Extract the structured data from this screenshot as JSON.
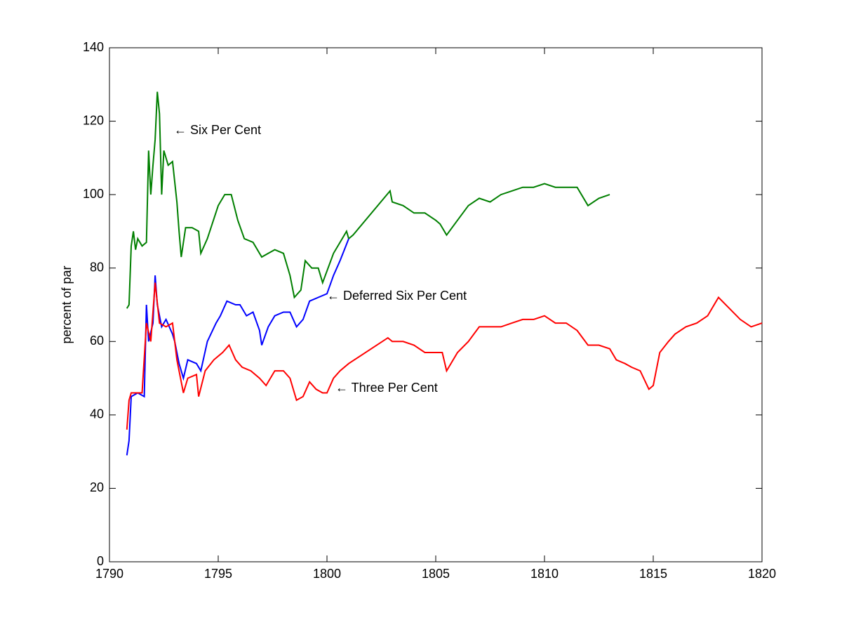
{
  "chart_data": {
    "type": "line",
    "y_label": "percent of par",
    "xlim": [
      1790,
      1820
    ],
    "ylim": [
      0,
      140
    ],
    "xticks": [
      1790,
      1795,
      1800,
      1805,
      1810,
      1815,
      1820
    ],
    "yticks": [
      0,
      20,
      40,
      60,
      80,
      100,
      120,
      140
    ],
    "annotations": [
      "← Six Per Cent",
      "← Deferred Six Per Cent",
      "← Three Per Cent"
    ],
    "series": [
      {
        "name": "Six Per Cent",
        "color": "#007f00",
        "x": [
          1790.8,
          1790.9,
          1791.0,
          1791.1,
          1791.2,
          1791.3,
          1791.5,
          1791.7,
          1791.8,
          1791.9,
          1792.0,
          1792.1,
          1792.2,
          1792.3,
          1792.4,
          1792.5,
          1792.7,
          1792.9,
          1793.1,
          1793.2,
          1793.3,
          1793.5,
          1793.8,
          1794.1,
          1794.2,
          1794.5,
          1795.0,
          1795.3,
          1795.6,
          1795.9,
          1796.2,
          1796.6,
          1797.0,
          1797.3,
          1797.6,
          1798.0,
          1798.3,
          1798.5,
          1798.8,
          1799.0,
          1799.3,
          1799.6,
          1799.8,
          1800.3,
          1800.6,
          1800.9,
          1801.0,
          1801.2,
          1802.9,
          1803.0,
          1803.5,
          1804.0,
          1804.5,
          1805.0,
          1805.2,
          1805.5,
          1806.0,
          1806.5,
          1807.0,
          1807.5,
          1808.0,
          1808.5,
          1809.0,
          1809.5,
          1810.0,
          1810.5,
          1811.0,
          1811.5,
          1812.0,
          1812.5,
          1813.0
        ],
        "values": [
          69,
          70,
          86,
          90,
          85,
          88,
          86,
          87,
          112,
          100,
          108,
          115,
          128,
          122,
          100,
          112,
          108,
          109,
          98,
          90,
          83,
          91,
          91,
          90,
          84,
          88,
          97,
          100,
          100,
          93,
          88,
          87,
          83,
          84,
          85,
          84,
          78,
          72,
          74,
          82,
          80,
          80,
          76,
          84,
          87,
          90,
          88,
          89,
          101,
          98,
          97,
          95,
          95,
          93,
          92,
          89,
          93,
          97,
          99,
          98,
          100,
          101,
          102,
          102,
          103,
          102,
          102,
          102,
          97,
          99,
          100
        ]
      },
      {
        "name": "Deferred Six Per Cent",
        "color": "#0000ff",
        "x": [
          1790.8,
          1790.9,
          1791.0,
          1791.3,
          1791.6,
          1791.7,
          1791.8,
          1792.0,
          1792.1,
          1792.2,
          1792.4,
          1792.6,
          1792.9,
          1793.0,
          1793.2,
          1793.4,
          1793.6,
          1794.0,
          1794.2,
          1794.5,
          1794.9,
          1795.1,
          1795.4,
          1795.8,
          1796.0,
          1796.3,
          1796.6,
          1796.9,
          1797.0,
          1797.3,
          1797.6,
          1798.0,
          1798.3,
          1798.6,
          1798.9,
          1799.2,
          1799.6,
          1800.0,
          1800.3,
          1800.6,
          1800.8,
          1801.0
        ],
        "values": [
          29,
          33,
          45,
          46,
          45,
          70,
          60,
          65,
          78,
          70,
          64,
          66,
          62,
          60,
          54,
          50,
          55,
          54,
          52,
          60,
          65,
          67,
          71,
          70,
          70,
          67,
          68,
          63,
          59,
          64,
          67,
          68,
          68,
          64,
          66,
          71,
          72,
          73,
          78,
          82,
          85,
          88
        ]
      },
      {
        "name": "Three Per Cent",
        "color": "#ff0000",
        "x": [
          1790.8,
          1790.9,
          1791.0,
          1791.5,
          1791.7,
          1791.9,
          1792.1,
          1792.3,
          1792.6,
          1792.9,
          1793.1,
          1793.4,
          1793.6,
          1794.0,
          1794.1,
          1794.4,
          1794.8,
          1795.2,
          1795.5,
          1795.8,
          1796.1,
          1796.5,
          1796.9,
          1797.2,
          1797.6,
          1798.0,
          1798.3,
          1798.6,
          1798.9,
          1799.2,
          1799.5,
          1799.8,
          1800.0,
          1800.3,
          1800.6,
          1801.0,
          1802.8,
          1803.0,
          1803.5,
          1804.0,
          1804.5,
          1805.0,
          1805.3,
          1805.5,
          1806.0,
          1806.5,
          1807.0,
          1807.5,
          1808.0,
          1808.5,
          1809.0,
          1809.5,
          1810.0,
          1810.5,
          1811.0,
          1811.5,
          1812.0,
          1812.5,
          1813.0,
          1813.3,
          1813.7,
          1814.0,
          1814.4,
          1814.8,
          1815.0,
          1815.3,
          1815.7,
          1816.0,
          1816.5,
          1817.0,
          1817.5,
          1818.0,
          1818.5,
          1819.0,
          1819.5,
          1820.0
        ],
        "values": [
          36,
          44,
          46,
          46,
          65,
          60,
          76,
          65,
          64,
          65,
          55,
          46,
          50,
          51,
          45,
          52,
          55,
          57,
          59,
          55,
          53,
          52,
          50,
          48,
          52,
          52,
          50,
          44,
          45,
          49,
          47,
          46,
          46,
          50,
          52,
          54,
          61,
          60,
          60,
          59,
          57,
          57,
          57,
          52,
          57,
          60,
          64,
          64,
          64,
          65,
          66,
          66,
          67,
          65,
          65,
          63,
          59,
          59,
          58,
          55,
          54,
          53,
          52,
          47,
          48,
          57,
          60,
          62,
          64,
          65,
          67,
          72,
          69,
          66,
          64,
          65
        ]
      }
    ]
  }
}
